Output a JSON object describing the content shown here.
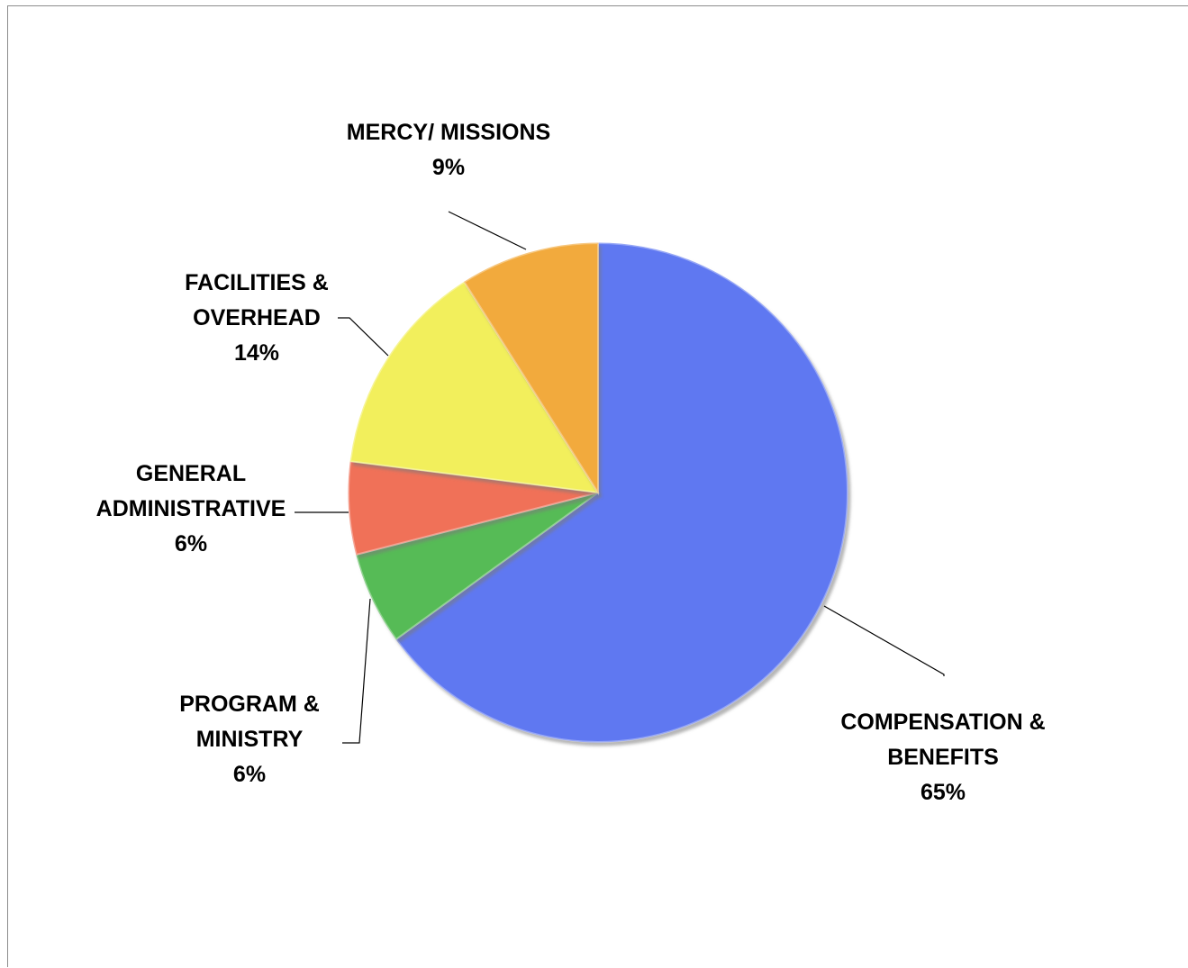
{
  "chart_data": {
    "type": "pie",
    "title": "",
    "start_angle_deg": 0,
    "direction": "clockwise",
    "slices": [
      {
        "label_lines": [
          "COMPENSATION &",
          "BENEFITS"
        ],
        "percent_label": "65%",
        "value": 65,
        "color": "#5e78f1"
      },
      {
        "label_lines": [
          "PROGRAM &",
          "MINISTRY"
        ],
        "percent_label": "6%",
        "value": 6,
        "color": "#57bb57"
      },
      {
        "label_lines": [
          "GENERAL",
          "ADMINISTRATIVE"
        ],
        "percent_label": "6%",
        "value": 6,
        "color": "#f07158"
      },
      {
        "label_lines": [
          "FACILITIES &",
          "OVERHEAD"
        ],
        "percent_label": "14%",
        "value": 14,
        "color": "#f2ef5b"
      },
      {
        "label_lines": [
          "MERCY/ MISSIONS"
        ],
        "percent_label": "9%",
        "value": 9,
        "color": "#f2aa3e"
      }
    ]
  }
}
